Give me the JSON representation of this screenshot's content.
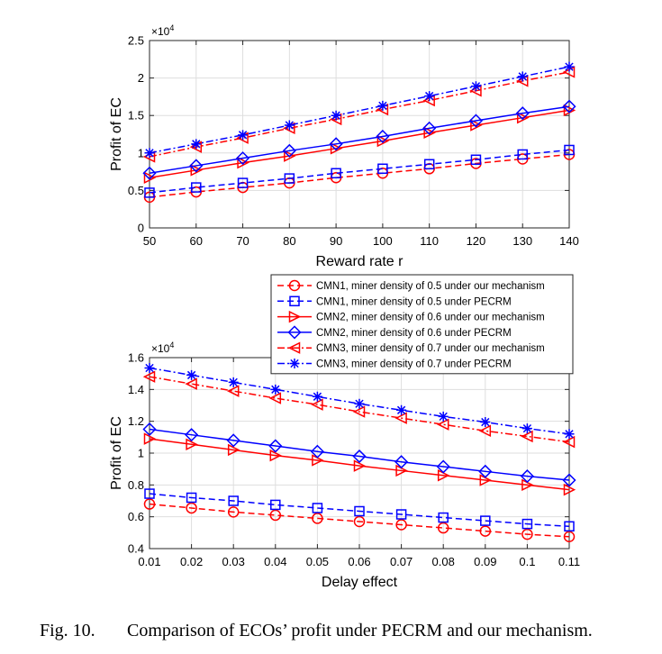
{
  "chart_data": [
    {
      "type": "line",
      "xlabel": "Reward rate r",
      "ylabel": "Profit of EC",
      "y_exponent": "×10",
      "y_exponent_power": "4",
      "xlim": [
        50,
        140
      ],
      "ylim": [
        0,
        2.5
      ],
      "grid": true,
      "x": [
        50,
        60,
        70,
        80,
        90,
        100,
        110,
        120,
        130,
        140
      ],
      "xticks": [
        "50",
        "60",
        "70",
        "80",
        "90",
        "100",
        "110",
        "120",
        "130",
        "140"
      ],
      "yticks": [
        "0",
        "0.5",
        "1",
        "1.5",
        "2",
        "2.5"
      ],
      "ytick_values": [
        0,
        0.5,
        1,
        1.5,
        2,
        2.5
      ],
      "series": [
        {
          "name": "CMN1, miner density of 0.5 under our mechanism",
          "color": "#ff0000",
          "dash": "dashed",
          "marker": "circle",
          "values": [
            0.41,
            0.48,
            0.54,
            0.6,
            0.67,
            0.73,
            0.79,
            0.86,
            0.92,
            0.98
          ]
        },
        {
          "name": "CMN1, miner density of 0.5 under PECRM",
          "color": "#0000ff",
          "dash": "dashed",
          "marker": "square",
          "values": [
            0.47,
            0.54,
            0.6,
            0.66,
            0.73,
            0.79,
            0.85,
            0.91,
            0.98,
            1.04
          ]
        },
        {
          "name": "CMN2, miner density of 0.6 under our mechanism",
          "color": "#ff0000",
          "dash": "solid",
          "marker": "triangle-right",
          "values": [
            0.67,
            0.77,
            0.87,
            0.96,
            1.06,
            1.16,
            1.27,
            1.37,
            1.47,
            1.57
          ]
        },
        {
          "name": "CMN2, miner density of 0.6 under PECRM",
          "color": "#0000ff",
          "dash": "solid",
          "marker": "diamond",
          "values": [
            0.73,
            0.83,
            0.93,
            1.03,
            1.12,
            1.22,
            1.33,
            1.43,
            1.53,
            1.62
          ]
        },
        {
          "name": "CMN3, miner density of 0.7 under our mechanism",
          "color": "#ff0000",
          "dash": "dashdot",
          "marker": "triangle-left",
          "values": [
            0.95,
            1.08,
            1.2,
            1.33,
            1.45,
            1.58,
            1.7,
            1.83,
            1.96,
            2.08
          ]
        },
        {
          "name": "CMN3, miner density of 0.7 under PECRM",
          "color": "#0000ff",
          "dash": "dashdot",
          "marker": "asterisk",
          "values": [
            1.0,
            1.12,
            1.24,
            1.37,
            1.5,
            1.63,
            1.76,
            1.89,
            2.02,
            2.15
          ]
        }
      ]
    },
    {
      "type": "line",
      "xlabel": "Delay effect",
      "ylabel": "Profit of EC",
      "y_exponent": "×10",
      "y_exponent_power": "4",
      "xlim": [
        0.01,
        0.11
      ],
      "ylim": [
        0.4,
        1.6
      ],
      "grid": true,
      "legend": "top",
      "x": [
        0.01,
        0.02,
        0.03,
        0.04,
        0.05,
        0.06,
        0.07,
        0.08,
        0.09,
        0.1,
        0.11
      ],
      "xticks": [
        "0.01",
        "0.02",
        "0.03",
        "0.04",
        "0.05",
        "0.06",
        "0.07",
        "0.08",
        "0.09",
        "0.1",
        "0.11"
      ],
      "yticks": [
        "0.4",
        "0.6",
        "0.8",
        "1",
        "1.2",
        "1.4",
        "1.6"
      ],
      "ytick_values": [
        0.4,
        0.6,
        0.8,
        1,
        1.2,
        1.4,
        1.6
      ],
      "series": [
        {
          "name": "CMN1, miner density of 0.5 under our mechanism",
          "color": "#ff0000",
          "dash": "dashed",
          "marker": "circle",
          "values": [
            0.68,
            0.655,
            0.63,
            0.61,
            0.59,
            0.57,
            0.55,
            0.53,
            0.51,
            0.49,
            0.475
          ]
        },
        {
          "name": "CMN1, miner density of 0.5 under PECRM",
          "color": "#0000ff",
          "dash": "dashed",
          "marker": "square",
          "values": [
            0.745,
            0.72,
            0.7,
            0.675,
            0.655,
            0.635,
            0.615,
            0.595,
            0.575,
            0.555,
            0.54
          ]
        },
        {
          "name": "CMN2, miner density of 0.6 under our mechanism",
          "color": "#ff0000",
          "dash": "solid",
          "marker": "triangle-right",
          "values": [
            1.09,
            1.055,
            1.02,
            0.985,
            0.955,
            0.92,
            0.89,
            0.86,
            0.83,
            0.8,
            0.77
          ]
        },
        {
          "name": "CMN2, miner density of 0.6 under PECRM",
          "color": "#0000ff",
          "dash": "solid",
          "marker": "diamond",
          "values": [
            1.15,
            1.115,
            1.08,
            1.045,
            1.01,
            0.98,
            0.945,
            0.915,
            0.885,
            0.855,
            0.83
          ]
        },
        {
          "name": "CMN3, miner density of 0.7 under our mechanism",
          "color": "#ff0000",
          "dash": "dashdot",
          "marker": "triangle-left",
          "values": [
            1.48,
            1.435,
            1.39,
            1.345,
            1.305,
            1.26,
            1.22,
            1.18,
            1.14,
            1.105,
            1.07
          ]
        },
        {
          "name": "CMN3, miner density of 0.7 under PECRM",
          "color": "#0000ff",
          "dash": "dashdot",
          "marker": "asterisk",
          "values": [
            1.535,
            1.49,
            1.445,
            1.4,
            1.355,
            1.31,
            1.27,
            1.23,
            1.195,
            1.155,
            1.12
          ]
        }
      ]
    }
  ],
  "caption": {
    "label": "Fig. 10.",
    "text": "Comparison of ECOs’ profit under PECRM and our mechanism."
  }
}
